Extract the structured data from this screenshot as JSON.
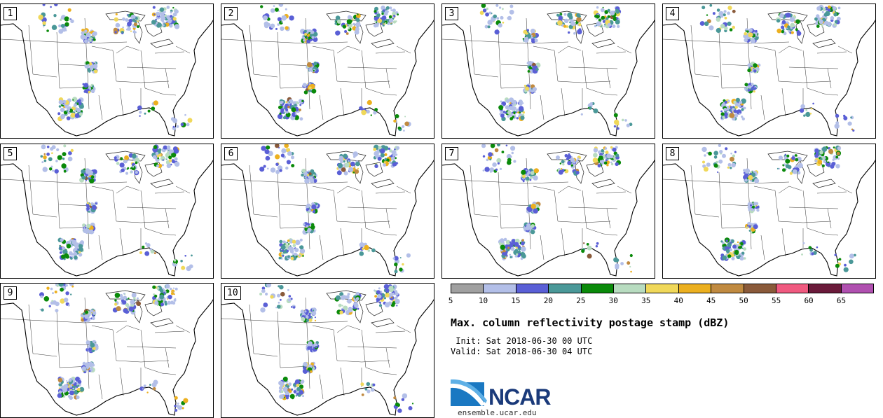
{
  "panels": [
    {
      "label": "1"
    },
    {
      "label": "2"
    },
    {
      "label": "3"
    },
    {
      "label": "4"
    },
    {
      "label": "5"
    },
    {
      "label": "6"
    },
    {
      "label": "7"
    },
    {
      "label": "8"
    },
    {
      "label": "9"
    },
    {
      "label": "10"
    }
  ],
  "colorbar": {
    "colors": [
      "#a0a0a0",
      "#b3bfe8",
      "#5a5fd6",
      "#4a9898",
      "#0a8a0a",
      "#b8dcc0",
      "#f0d85a",
      "#ecb020",
      "#c08a40",
      "#8a5a3a",
      "#f05a80",
      "#6a1a3a",
      "#b050b0"
    ],
    "ticks": [
      "5",
      "10",
      "15",
      "20",
      "25",
      "30",
      "35",
      "40",
      "45",
      "50",
      "55",
      "60",
      "65"
    ]
  },
  "title": "Max. column reflectivity postage stamp (dBZ)",
  "init": " Init: Sat 2018-06-30 00 UTC",
  "valid": "Valid: Sat 2018-06-30 04 UTC",
  "logo": {
    "text": "NCAR",
    "site": "ensemble.ucar.edu"
  }
}
